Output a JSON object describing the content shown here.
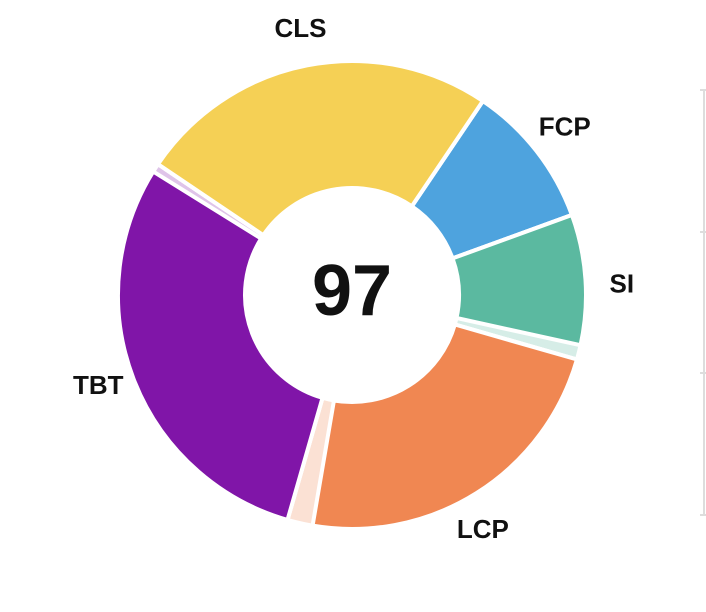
{
  "score": 97,
  "metrics": [
    {
      "name": "FCP",
      "weight": 10,
      "score": 100,
      "color": "#4ea3de"
    },
    {
      "name": "SI",
      "weight": 10,
      "score": 90,
      "color": "#5bb9a0"
    },
    {
      "name": "LCP",
      "weight": 25,
      "score": 93,
      "color": "#f08752"
    },
    {
      "name": "TBT",
      "weight": 30,
      "score": 98,
      "color": "#8015a8"
    },
    {
      "name": "CLS",
      "weight": 25,
      "score": 100,
      "color": "#f5d055"
    }
  ]
}
